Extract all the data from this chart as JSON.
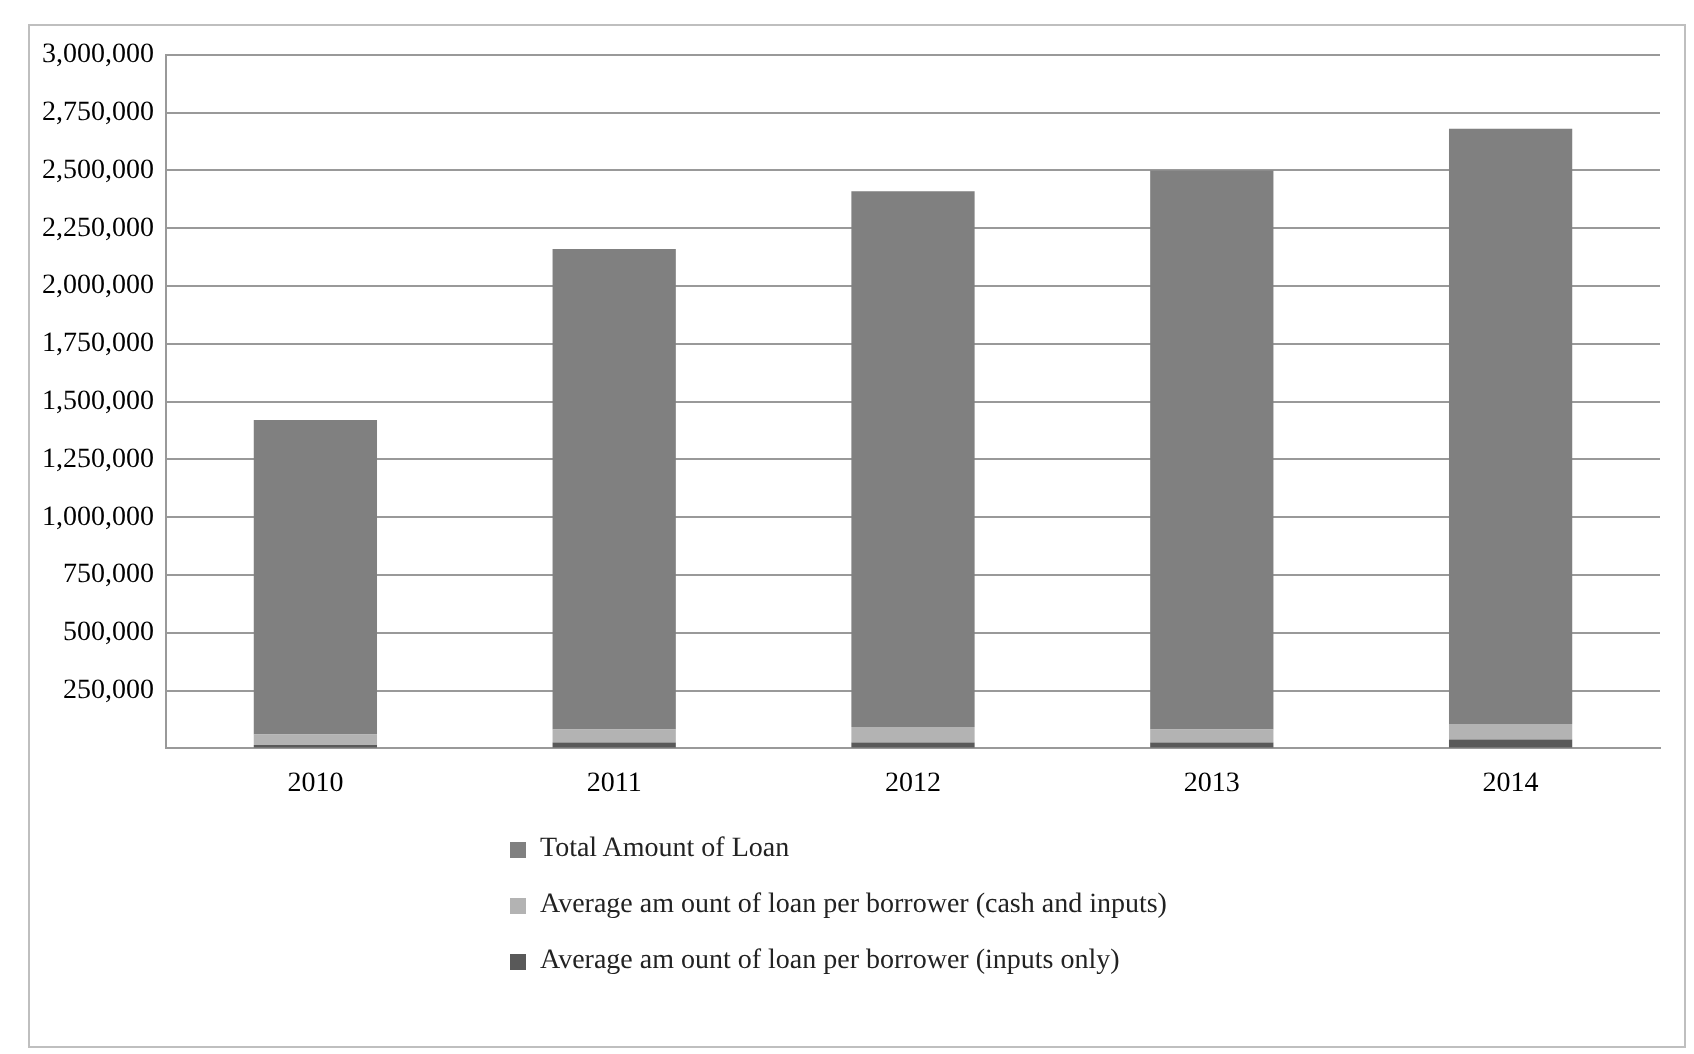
{
  "chart_data": {
    "type": "bar",
    "stacked": true,
    "categories": [
      "2010",
      "2011",
      "2012",
      "2013",
      "2014"
    ],
    "series": [
      {
        "name": "Average am ount of loan per borrower (inputs only)",
        "color": "#595959",
        "values": [
          15000,
          25000,
          25000,
          25000,
          38000
        ]
      },
      {
        "name": "Average am ount of loan per borrower (cash and inputs)",
        "color": "#b3b3b3",
        "values": [
          45000,
          57000,
          68000,
          57000,
          68000
        ]
      },
      {
        "name": "Total Amount of Loan",
        "color": "#808080",
        "values": [
          1360000,
          2078000,
          2317000,
          2418000,
          2574000
        ]
      }
    ],
    "ylim": [
      0,
      3000000
    ],
    "yticks": [
      {
        "value": 0,
        "label": null
      },
      {
        "value": 250000,
        "label": "250,000"
      },
      {
        "value": 500000,
        "label": "500,000"
      },
      {
        "value": 750000,
        "label": "750,000"
      },
      {
        "value": 1000000,
        "label": "1,000,000"
      },
      {
        "value": 1250000,
        "label": "1,250,000"
      },
      {
        "value": 1500000,
        "label": "1,500,000"
      },
      {
        "value": 1750000,
        "label": "1,750,000"
      },
      {
        "value": 2000000,
        "label": "2,000,000"
      },
      {
        "value": 2250000,
        "label": "2,250,000"
      },
      {
        "value": 2500000,
        "label": "2,500,000"
      },
      {
        "value": 2750000,
        "label": "2,750,000"
      },
      {
        "value": 3000000,
        "label": "3,000,000"
      }
    ],
    "grid": "y",
    "legend": "bottom"
  }
}
